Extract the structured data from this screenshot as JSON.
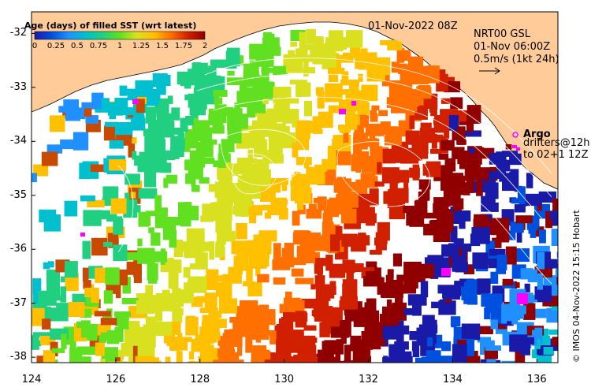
{
  "colorbar": {
    "title": "Age (days) of filled SST (wrt latest)",
    "tick_labels": [
      "0",
      "0.25",
      "0.5",
      "0.75",
      "1",
      "1.25",
      "1.5",
      "1.75",
      "2"
    ],
    "range": [
      0,
      2
    ],
    "colors": [
      "#1a1aa8",
      "#0050e0",
      "#2090ff",
      "#00c0d0",
      "#20d080",
      "#60e020",
      "#d8e020",
      "#ffc000",
      "#ff7000",
      "#d02000",
      "#900000"
    ]
  },
  "header": {
    "datetime": "01-Nov-2022 08Z",
    "current_line1": "NRT00 GSL",
    "current_line2": "01-Nov 06:00Z",
    "current_line3": "0.5m/s (1kt 24h)"
  },
  "legend": {
    "argo_label": "Argo",
    "drifters_line1": "drifters@12h",
    "drifters_line2": "to 02+1 12Z"
  },
  "credit": "© IMOS 04-Nov-2022 15:15 Hobart",
  "axes": {
    "lat_ticks": [
      "-32",
      "-33",
      "-34",
      "-35",
      "-36",
      "-37",
      "-38"
    ],
    "lon_ticks": [
      "124",
      "126",
      "128",
      "130",
      "132",
      "134",
      "136"
    ],
    "lat_range": [
      -38.1,
      -31.6
    ],
    "lon_range": [
      124,
      136.5
    ]
  },
  "colors": {
    "land": "#ffcc99",
    "no_data": "#ffffff",
    "argo": "#ff00ff"
  }
}
